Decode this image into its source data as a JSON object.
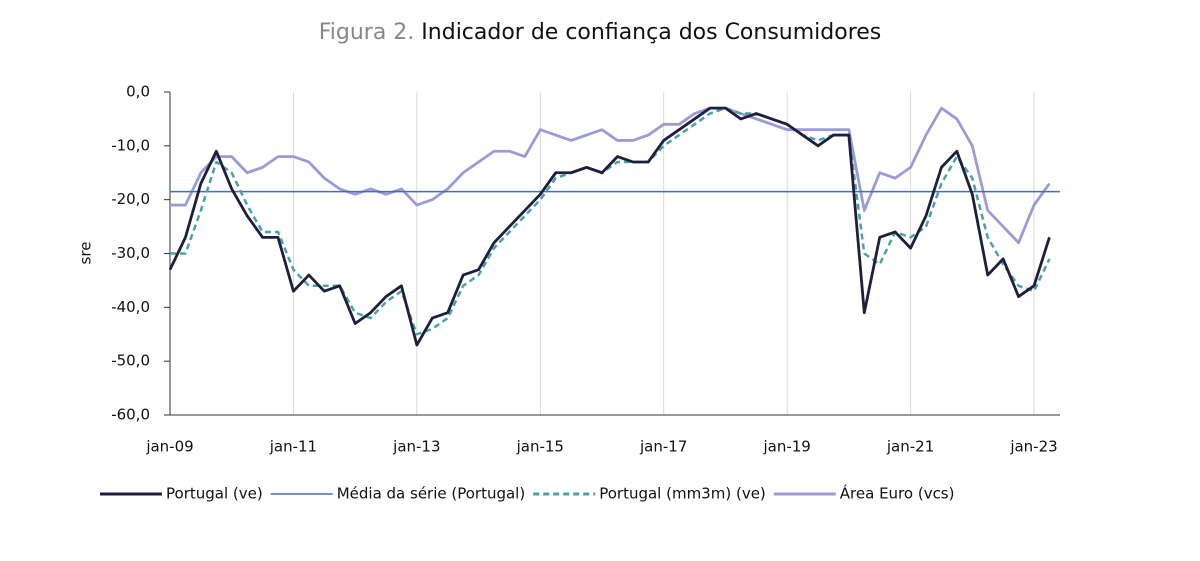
{
  "chart_data": {
    "type": "line",
    "title_prefix": "Figura 2.",
    "title": "Indicador de confiança dos Consumidores",
    "y_label": "sre",
    "categories": [
      "jan-09",
      null,
      null,
      null,
      null,
      null,
      null,
      null,
      "jan-11",
      null,
      null,
      null,
      null,
      null,
      null,
      null,
      "jan-13",
      null,
      null,
      null,
      null,
      null,
      null,
      null,
      "jan-15",
      null,
      null,
      null,
      null,
      null,
      null,
      null,
      "jan-17",
      null,
      null,
      null,
      null,
      null,
      null,
      null,
      "jan-19",
      null,
      null,
      null,
      null,
      null,
      null,
      null,
      "jan-21",
      null,
      null,
      null,
      null,
      null,
      null,
      null,
      "jan-23",
      null
    ],
    "ylim": [
      -60,
      0
    ],
    "yticks": [
      {
        "value": 0,
        "label": "0,0"
      },
      {
        "value": -10,
        "label": "-10,0"
      },
      {
        "value": -20,
        "label": "-20,0"
      },
      {
        "value": -30,
        "label": "-30,0"
      },
      {
        "value": -40,
        "label": "-40,0"
      },
      {
        "value": -50,
        "label": "-50,0"
      },
      {
        "value": -60,
        "label": "-60,0"
      }
    ],
    "grid": true,
    "legend": "bottom",
    "series": [
      {
        "name": "Portugal (ve)",
        "color": "#1e1f3f",
        "values": [
          -33,
          -27,
          -17,
          -11,
          -18,
          -23,
          -27,
          -27,
          -37,
          -34,
          -37,
          -36,
          -43,
          -41,
          -38,
          -36,
          -47,
          -42,
          -41,
          -34,
          -33,
          -28,
          -25,
          -22,
          -19,
          -15,
          -15,
          -14,
          -15,
          -12,
          -13,
          -13,
          -9,
          -7,
          -5,
          -3,
          -3,
          -5,
          -4,
          -5,
          -6,
          -8,
          -10,
          -8,
          -8,
          -41,
          -27,
          -26,
          -29,
          -23,
          -14,
          -11,
          -19,
          -34,
          -31,
          -38,
          -36,
          -27
        ]
      },
      {
        "name": "Média da série (Portugal)",
        "color": "#4a6bb5",
        "value": -18.5
      },
      {
        "name": "Portugal (mm3m) (ve)",
        "color": "#4aa3a3",
        "dash": true,
        "values": [
          -30,
          -30,
          -22,
          -13,
          -15,
          -21,
          -26,
          -26,
          -33,
          -36,
          -36,
          -36,
          -41,
          -42,
          -39,
          -37,
          -45,
          -44,
          -42,
          -36,
          -34,
          -29,
          -26,
          -23,
          -20,
          -16,
          -15,
          -14,
          -15,
          -13,
          -13,
          -13,
          -10,
          -8,
          -6,
          -4,
          -3,
          -4,
          -4,
          -5,
          -6,
          -8,
          -9,
          -8,
          -8,
          -30,
          -32,
          -26,
          -27,
          -25,
          -17,
          -12,
          -16,
          -27,
          -32,
          -36,
          -37,
          -31
        ]
      },
      {
        "name": "Área Euro (vcs)",
        "color": "#9b9bd8",
        "values": [
          -21,
          -21,
          -15,
          -12,
          -12,
          -15,
          -14,
          -12,
          -12,
          -13,
          -16,
          -18,
          -19,
          -18,
          -19,
          -18,
          -21,
          -20,
          -18,
          -15,
          -13,
          -11,
          -11,
          -12,
          -7,
          -8,
          -9,
          -8,
          -7,
          -9,
          -9,
          -8,
          -6,
          -6,
          -4,
          -3,
          -3,
          -4,
          -5,
          -6,
          -7,
          -7,
          -7,
          -7,
          -7,
          -22,
          -15,
          -16,
          -14,
          -8,
          -3,
          -5,
          -10,
          -22,
          -25,
          -28,
          -21,
          -17
        ]
      }
    ]
  }
}
